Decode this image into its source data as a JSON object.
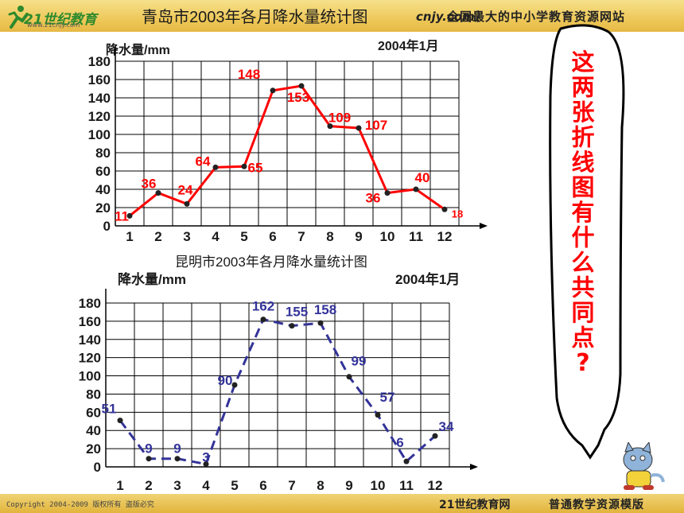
{
  "header": {
    "logo_text": "21世纪教育",
    "logo_url": "www.21cnjy.com",
    "url_fragment": "cnjy.com）",
    "slogan": "全国最大的中小学教育资源网站"
  },
  "footer": {
    "copyright": "Copyright 2004-2009 版权所有 盗版必究",
    "site": "21世纪教育网",
    "template": "普通教学资源模版"
  },
  "callout": {
    "text": "这两张折线图有什么共同点?"
  },
  "colors": {
    "qingdao_line": "#ff0000",
    "qingdao_labels": "#ff0000",
    "kunming_line": "#333399",
    "kunming_labels": "#333399",
    "grid": "#000000",
    "header_bg": "#eec95a"
  },
  "chart_data": [
    {
      "type": "line",
      "title": "青岛市2003年各月降水量统计图",
      "ylabel": "降水量/mm",
      "date_note": "2004年1月",
      "categories": [
        "1",
        "2",
        "3",
        "4",
        "5",
        "6",
        "7",
        "8",
        "9",
        "10",
        "11",
        "12"
      ],
      "yticks": [
        "0",
        "20",
        "40",
        "60",
        "80",
        "100",
        "120",
        "140",
        "160",
        "180"
      ],
      "ylim": [
        0,
        180
      ],
      "series": [
        {
          "values": [
            11,
            36,
            24,
            64,
            65,
            148,
            153,
            109,
            107,
            36,
            40,
            18
          ],
          "style": "solid",
          "color": "#ff0000"
        }
      ],
      "data_labels": [
        "11",
        "36",
        "24",
        "64",
        "65",
        "148",
        "153",
        "109",
        "107",
        "36",
        "40",
        "18"
      ],
      "grid": true
    },
    {
      "type": "line",
      "title": "昆明市2003年各月降水量统计图",
      "ylabel": "降水量/mm",
      "date_note": "2004年1月",
      "categories": [
        "1",
        "2",
        "3",
        "4",
        "5",
        "6",
        "7",
        "8",
        "9",
        "10",
        "11",
        "12"
      ],
      "yticks": [
        "0",
        "20",
        "40",
        "60",
        "80",
        "100",
        "120",
        "140",
        "160",
        "180"
      ],
      "ylim": [
        0,
        180
      ],
      "series": [
        {
          "values": [
            51,
            9,
            9,
            3,
            90,
            162,
            155,
            158,
            99,
            57,
            6,
            34
          ],
          "style": "dashed",
          "color": "#333399"
        }
      ],
      "data_labels": [
        "51",
        "9",
        "9",
        "3",
        "90",
        "162",
        "155",
        "158",
        "99",
        "57",
        "6",
        "34"
      ],
      "grid": true
    }
  ]
}
